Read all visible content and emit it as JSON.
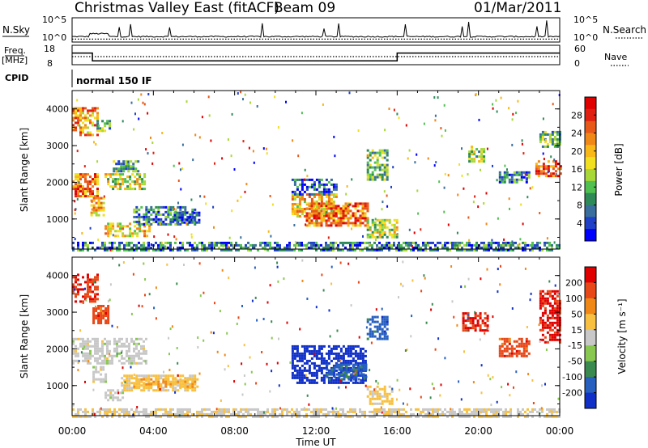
{
  "header": {
    "title": "Christmas Valley East (fitACF)",
    "beam": "Beam 09",
    "date": "01/Mar/2011"
  },
  "strip_labels": {
    "nsky": "N.Sky",
    "nsky_ticks": [
      "10^5",
      "10^0"
    ],
    "nsearch": "N.Search",
    "nsearch_ticks": [
      "10^5",
      "10^0"
    ],
    "freq_label_1": "Freq.",
    "freq_label_2": "[MHz]",
    "freq_ticks": [
      "18",
      "8"
    ],
    "nave": "Nave",
    "nave_ticks": [
      "60",
      "0"
    ],
    "cpid": "CPID",
    "cpid_value": "normal 150 IF"
  },
  "x_ticks": [
    "00:00",
    "04:00",
    "08:00",
    "12:00",
    "16:00",
    "20:00",
    "00:00"
  ],
  "x_label": "Time UT",
  "y_ticks": [
    "1000",
    "2000",
    "3000",
    "4000"
  ],
  "y_label": "Slant Range [km]",
  "power_colorbar": {
    "label": "Power [dB]",
    "ticks": [
      "28",
      "24",
      "20",
      "16",
      "12",
      "8",
      "4"
    ],
    "colors": [
      "#0000ff",
      "#2040c8",
      "#3a6e9c",
      "#2e8b57",
      "#50c050",
      "#a8d838",
      "#f0e020",
      "#f8b818",
      "#f08818",
      "#e85818",
      "#e02010",
      "#e00000"
    ]
  },
  "velocity_colorbar": {
    "label": "Velocity [m s⁻¹]",
    "ticks": [
      "200",
      "100",
      "50",
      "15",
      "-15",
      "-50",
      "-100",
      "-200"
    ],
    "colors": [
      "#1030c8",
      "#2860c0",
      "#3a8a50",
      "#88c850",
      "#c8c8c8",
      "#f8c040",
      "#f08818",
      "#e84818",
      "#e00000"
    ]
  },
  "chart_data": [
    {
      "type": "line",
      "title": "N.Sky / N.Search",
      "x_range_hours": [
        0,
        24
      ],
      "y_scale": "log",
      "y_range": [
        "10^0",
        "10^5"
      ],
      "series": [
        {
          "name": "N.Sky",
          "style": "solid"
        },
        {
          "name": "N.Search",
          "style": "dotted"
        }
      ]
    },
    {
      "type": "line",
      "title": "Freq. [MHz] / Nave",
      "x_range_hours": [
        0,
        24
      ],
      "series": [
        {
          "name": "Freq.",
          "unit": "MHz",
          "style": "solid",
          "x": [
            0,
            1,
            1,
            16,
            16,
            24
          ],
          "y": [
            14,
            14,
            10,
            10,
            14,
            14
          ]
        },
        {
          "name": "Nave",
          "style": "dotted",
          "x": [
            0,
            24
          ],
          "y": [
            25,
            25
          ]
        }
      ],
      "ylim_freq": [
        8,
        18
      ],
      "ylim_nave": [
        0,
        60
      ]
    },
    {
      "type": "heatmap",
      "quantity": "Power",
      "unit": "dB",
      "x_range_hours": [
        0,
        24
      ],
      "y_range_km": [
        180,
        4500
      ],
      "regions": [
        {
          "t0": 0.0,
          "t1": 1.2,
          "r0": 3300,
          "r1": 4050,
          "v": 22
        },
        {
          "t0": 1.2,
          "t1": 1.8,
          "r0": 3400,
          "r1": 3700,
          "v": 12
        },
        {
          "t0": 0.0,
          "t1": 1.3,
          "r0": 1600,
          "r1": 2250,
          "v": 24
        },
        {
          "t0": 0.9,
          "t1": 1.5,
          "r0": 1100,
          "r1": 1600,
          "v": 20
        },
        {
          "t0": 1.6,
          "t1": 3.6,
          "r0": 1800,
          "r1": 2250,
          "v": 16
        },
        {
          "t0": 2.0,
          "t1": 3.2,
          "r0": 2300,
          "r1": 2600,
          "v": 10
        },
        {
          "t0": 1.6,
          "t1": 3.8,
          "r0": 550,
          "r1": 900,
          "v": 18
        },
        {
          "t0": 3.0,
          "t1": 6.0,
          "r0": 850,
          "r1": 1350,
          "v": 8
        },
        {
          "t0": 5.0,
          "t1": 6.3,
          "r0": 900,
          "r1": 1200,
          "v": 6
        },
        {
          "t0": 10.8,
          "t1": 13.0,
          "r0": 1100,
          "r1": 1700,
          "v": 20
        },
        {
          "t0": 11.5,
          "t1": 14.5,
          "r0": 800,
          "r1": 1450,
          "v": 24
        },
        {
          "t0": 14.5,
          "t1": 16.0,
          "r0": 500,
          "r1": 1000,
          "v": 16
        },
        {
          "t0": 10.8,
          "t1": 13.0,
          "r0": 1700,
          "r1": 2100,
          "v": 6
        },
        {
          "t0": 14.5,
          "t1": 15.5,
          "r0": 2100,
          "r1": 2900,
          "v": 12
        },
        {
          "t0": 19.5,
          "t1": 20.3,
          "r0": 2600,
          "r1": 3000,
          "v": 14
        },
        {
          "t0": 22.8,
          "t1": 24.0,
          "r0": 2200,
          "r1": 2600,
          "v": 26
        },
        {
          "t0": 21.0,
          "t1": 22.5,
          "r0": 2000,
          "r1": 2300,
          "v": 8
        },
        {
          "t0": 23.0,
          "t1": 24.0,
          "r0": 3000,
          "r1": 3400,
          "v": 12
        },
        {
          "t0": 0.0,
          "t1": 24.0,
          "r0": 180,
          "r1": 380,
          "v": 8
        }
      ]
    },
    {
      "type": "heatmap",
      "quantity": "Velocity",
      "unit": "m s⁻¹",
      "x_range_hours": [
        0,
        24
      ],
      "y_range_km": [
        180,
        4500
      ],
      "regions": [
        {
          "t0": 0.0,
          "t1": 1.3,
          "r0": 3300,
          "r1": 4050,
          "v": 180
        },
        {
          "t0": 1.0,
          "t1": 1.8,
          "r0": 2700,
          "r1": 3200,
          "v": 160
        },
        {
          "t0": 0.0,
          "t1": 3.6,
          "r0": 1600,
          "r1": 2300,
          "v": 0
        },
        {
          "t0": 1.0,
          "t1": 1.6,
          "r0": 1100,
          "r1": 1600,
          "v": 0
        },
        {
          "t0": 1.6,
          "t1": 2.5,
          "r0": 600,
          "r1": 900,
          "v": 0
        },
        {
          "t0": 2.4,
          "t1": 6.0,
          "r0": 850,
          "r1": 1300,
          "v": 40
        },
        {
          "t0": 3.0,
          "t1": 6.2,
          "r0": 1000,
          "r1": 1200,
          "v": 70
        },
        {
          "t0": 10.8,
          "t1": 14.5,
          "r0": 1100,
          "r1": 2100,
          "v": -220
        },
        {
          "t0": 12.5,
          "t1": 14.5,
          "r0": 1200,
          "r1": 1600,
          "v": -150
        },
        {
          "t0": 14.5,
          "t1": 15.8,
          "r0": 500,
          "r1": 1000,
          "v": 40
        },
        {
          "t0": 14.5,
          "t1": 15.5,
          "r0": 2300,
          "r1": 2900,
          "v": -160
        },
        {
          "t0": 19.2,
          "t1": 20.5,
          "r0": 2500,
          "r1": 3000,
          "v": 200
        },
        {
          "t0": 21.0,
          "t1": 22.5,
          "r0": 1800,
          "r1": 2300,
          "v": 160
        },
        {
          "t0": 23.0,
          "t1": 24.0,
          "r0": 2200,
          "r1": 3600,
          "v": 200
        },
        {
          "t0": 0.0,
          "t1": 24.0,
          "r0": 180,
          "r1": 380,
          "v": 20
        }
      ]
    }
  ]
}
